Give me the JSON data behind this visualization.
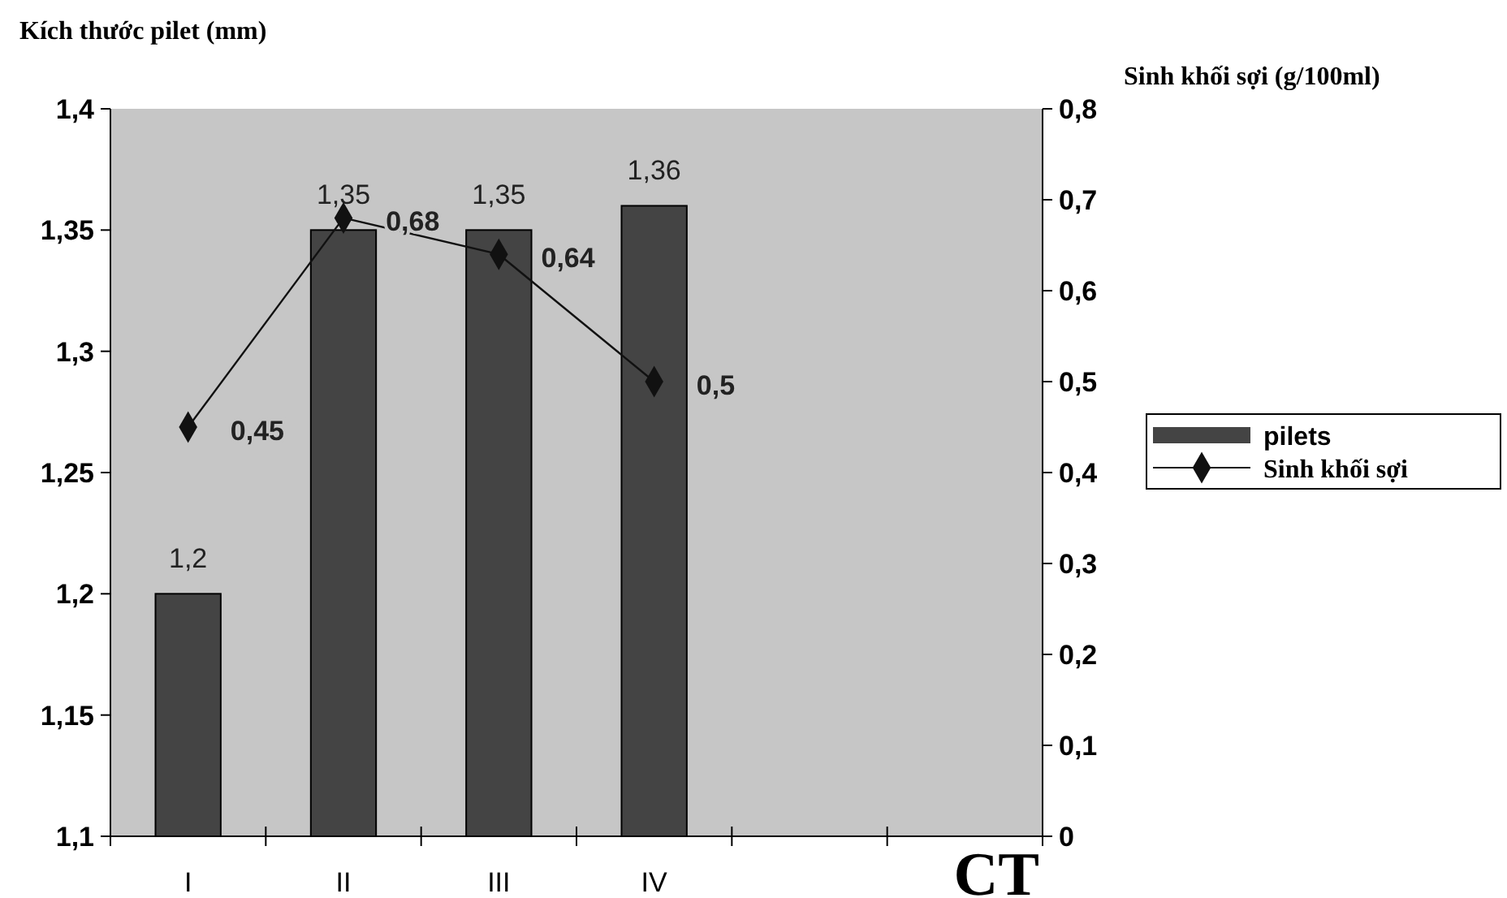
{
  "chart_data": {
    "type": "bar",
    "ylabel": "Kích thước pilet (mm)",
    "y2label": "Sinh khối sợi (g/100ml)",
    "xlabel": "CT",
    "categories": [
      "I",
      "II",
      "III",
      "IV",
      null,
      null
    ],
    "series": [
      {
        "name": "pilets",
        "color": "#444444",
        "values": [
          1.2,
          1.35,
          1.35,
          1.36,
          null,
          null
        ],
        "value_labels": [
          "1,2",
          "1,35",
          "1,35",
          "1,36",
          null,
          null
        ]
      },
      {
        "name": "Sinh khối sợi",
        "type": "line",
        "axis": "y2",
        "color": "#111111",
        "marker": "diamond",
        "values": [
          0.45,
          0.68,
          0.64,
          0.5,
          null,
          null
        ],
        "value_labels": [
          "0,45",
          "0,68",
          "0,64",
          "0,5",
          null,
          null
        ]
      }
    ],
    "ylim": [
      1.1,
      1.4
    ],
    "yticks": [
      {
        "value": 1.1,
        "label": "1,1"
      },
      {
        "value": 1.15,
        "label": "1,15"
      },
      {
        "value": 1.2,
        "label": "1,2"
      },
      {
        "value": 1.25,
        "label": "1,25"
      },
      {
        "value": 1.3,
        "label": "1,3"
      },
      {
        "value": 1.35,
        "label": "1,35"
      },
      {
        "value": 1.4,
        "label": "1,4"
      }
    ],
    "y2lim": [
      0,
      0.8
    ],
    "y2ticks": [
      0,
      {
        "value": 0.1,
        "label": "0,1"
      },
      {
        "value": 0.2,
        "label": "0,2"
      },
      {
        "value": 0.3,
        "label": "0,3"
      },
      {
        "value": 0.4,
        "label": "0,4"
      },
      {
        "value": 0.5,
        "label": "0,5"
      },
      {
        "value": 0.6,
        "label": "0,6"
      },
      {
        "value": 0.7,
        "label": "0,7"
      },
      {
        "value": 0.8,
        "label": "0,8"
      }
    ],
    "grid": false,
    "legend": "right"
  }
}
